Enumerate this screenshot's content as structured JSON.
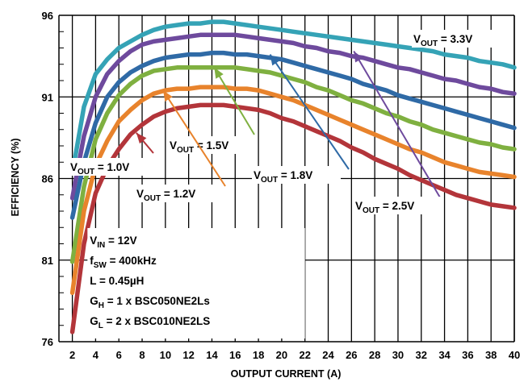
{
  "chart_data": {
    "type": "line",
    "xlabel": "OUTPUT CURRENT (A)",
    "ylabel": "EFFICIENCY (%)",
    "xlim": [
      1,
      40
    ],
    "ylim": [
      76,
      96
    ],
    "x_ticks": [
      2,
      4,
      6,
      8,
      10,
      12,
      14,
      16,
      18,
      20,
      22,
      24,
      26,
      28,
      30,
      32,
      34,
      36,
      38,
      40
    ],
    "y_ticks": [
      76,
      81,
      86,
      91,
      96
    ],
    "x_tick_labels": [
      "2",
      "4",
      "6",
      "8",
      "10",
      "12",
      "14",
      "16",
      "18",
      "20",
      "22",
      "24",
      "26",
      "28",
      "30",
      "32",
      "34",
      "36",
      "38",
      "40"
    ],
    "y_tick_labels": [
      "76",
      "81",
      "86",
      "91",
      "96"
    ],
    "grid": true,
    "x": [
      2,
      3,
      4,
      5,
      6,
      7,
      8,
      9,
      10,
      11,
      12,
      13,
      14,
      15,
      16,
      17,
      18,
      19,
      20,
      21,
      22,
      23,
      24,
      25,
      26,
      27,
      28,
      29,
      30,
      31,
      32,
      33,
      34,
      35,
      36,
      37,
      38,
      39,
      40
    ],
    "series": [
      {
        "key": "v33",
        "color": "#35a3b6",
        "values": [
          86.3,
          90.4,
          92.4,
          93.3,
          94.0,
          94.4,
          94.8,
          95.1,
          95.3,
          95.4,
          95.5,
          95.5,
          95.6,
          95.6,
          95.5,
          95.4,
          95.3,
          95.2,
          95.1,
          95.0,
          94.9,
          94.8,
          94.7,
          94.6,
          94.5,
          94.4,
          94.3,
          94.2,
          94.1,
          94.0,
          93.9,
          93.8,
          93.6,
          93.5,
          93.4,
          93.2,
          93.1,
          93.0,
          92.8
        ]
      },
      {
        "key": "v25",
        "color": "#6e4a9d",
        "values": [
          84.8,
          88.6,
          91.0,
          92.4,
          93.2,
          93.8,
          94.2,
          94.4,
          94.5,
          94.6,
          94.7,
          94.8,
          94.8,
          94.8,
          94.8,
          94.7,
          94.6,
          94.5,
          94.4,
          94.3,
          94.1,
          94.0,
          93.8,
          93.7,
          93.5,
          93.4,
          93.2,
          93.0,
          92.8,
          92.7,
          92.5,
          92.3,
          92.1,
          92.0,
          91.8,
          91.6,
          91.5,
          91.3,
          91.2
        ]
      },
      {
        "key": "v18",
        "color": "#2f6aa6",
        "values": [
          83.6,
          87.0,
          89.4,
          91.0,
          91.9,
          92.5,
          92.9,
          93.2,
          93.4,
          93.5,
          93.6,
          93.6,
          93.7,
          93.7,
          93.6,
          93.6,
          93.5,
          93.4,
          93.3,
          93.1,
          92.9,
          92.7,
          92.5,
          92.3,
          92.1,
          91.8,
          91.6,
          91.4,
          91.1,
          90.9,
          90.7,
          90.5,
          90.3,
          90.1,
          89.9,
          89.7,
          89.5,
          89.3,
          89.1
        ]
      },
      {
        "key": "v15",
        "color": "#7fb040",
        "values": [
          80.9,
          85.5,
          88.4,
          90.0,
          91.1,
          91.8,
          92.3,
          92.6,
          92.7,
          92.8,
          92.8,
          92.8,
          92.8,
          92.8,
          92.8,
          92.7,
          92.6,
          92.5,
          92.3,
          92.1,
          91.9,
          91.6,
          91.4,
          91.1,
          90.8,
          90.6,
          90.3,
          90.0,
          89.8,
          89.5,
          89.3,
          89.0,
          88.8,
          88.6,
          88.4,
          88.2,
          88.1,
          87.9,
          87.8
        ]
      },
      {
        "key": "v12",
        "color": "#e8832c",
        "values": [
          79.0,
          84.0,
          86.8,
          88.3,
          89.5,
          90.2,
          90.8,
          91.2,
          91.4,
          91.5,
          91.5,
          91.6,
          91.6,
          91.6,
          91.5,
          91.5,
          91.4,
          91.2,
          91.0,
          90.8,
          90.5,
          90.2,
          89.9,
          89.6,
          89.3,
          89.0,
          88.7,
          88.4,
          88.1,
          87.8,
          87.6,
          87.3,
          87.0,
          86.8,
          86.6,
          86.4,
          86.3,
          86.2,
          86.1
        ]
      },
      {
        "key": "v10",
        "color": "#b3353a",
        "values": [
          76.6,
          82.0,
          85.1,
          86.7,
          87.8,
          88.7,
          89.3,
          89.8,
          90.1,
          90.3,
          90.4,
          90.5,
          90.5,
          90.5,
          90.4,
          90.3,
          90.2,
          90.0,
          89.7,
          89.5,
          89.2,
          88.9,
          88.6,
          88.3,
          87.9,
          87.6,
          87.2,
          86.9,
          86.6,
          86.2,
          85.9,
          85.6,
          85.3,
          85.0,
          84.8,
          84.6,
          84.4,
          84.3,
          84.2
        ]
      }
    ],
    "annotations": [
      {
        "key": "v33",
        "main": "V",
        "sub": "OUT",
        "rest": " = 3.3V"
      },
      {
        "key": "v25",
        "main": "V",
        "sub": "OUT",
        "rest": " = 2.5V"
      },
      {
        "key": "v18",
        "main": "V",
        "sub": "OUT",
        "rest": " = 1.8V"
      },
      {
        "key": "v15",
        "main": "V",
        "sub": "OUT",
        "rest": " = 1.5V"
      },
      {
        "key": "v12",
        "main": "V",
        "sub": "OUT",
        "rest": " = 1.2V"
      },
      {
        "key": "v10",
        "main": "V",
        "sub": "OUT",
        "rest": " = 1.0V"
      }
    ],
    "conditions": [
      {
        "main": "V",
        "sub": "IN",
        "rest": " = 12V"
      },
      {
        "main": "f",
        "sub": "SW",
        "rest": " = 400kHz"
      },
      {
        "main": "L = 0.45µH",
        "sub": "",
        "rest": ""
      },
      {
        "main": "G",
        "sub": "H",
        "rest": " = 1 x BSC050NE2Ls"
      },
      {
        "main": "G",
        "sub": "L",
        "rest": " = 2 x BSC010NE2LS"
      }
    ]
  }
}
